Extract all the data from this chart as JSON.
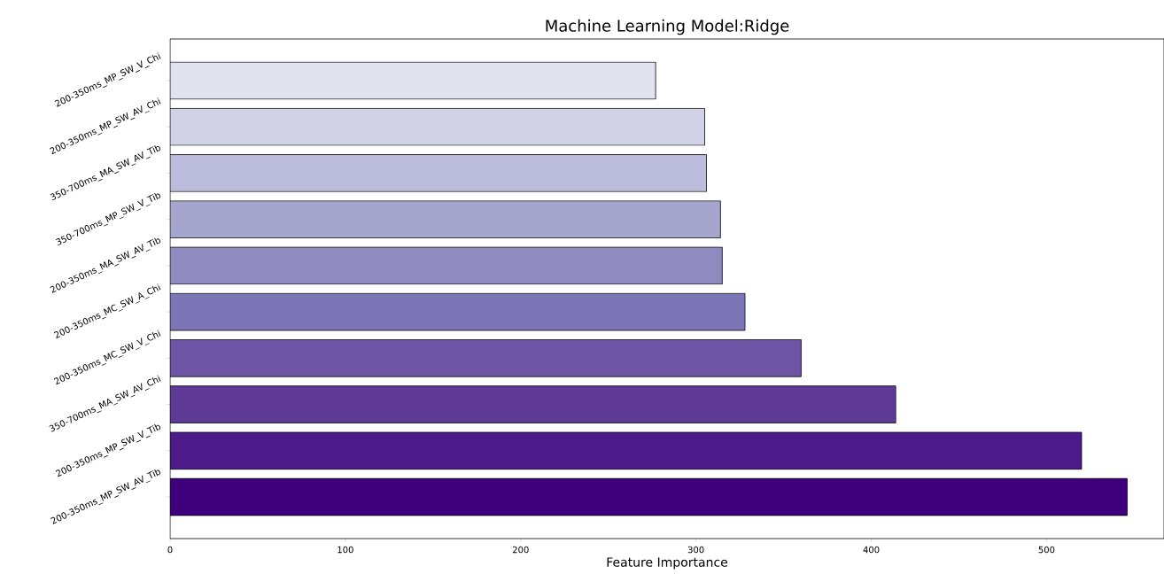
{
  "chart_data": {
    "type": "bar",
    "orientation": "horizontal",
    "title": "Machine Learning Model:Ridge",
    "xlabel": "Feature Importance",
    "categories": [
      "200-350ms_MP_SW_V_Chi",
      "200-350ms_MP_SW_AV_Chi",
      "350-700ms_MA_SW_AV_Tib",
      "350-700ms_MP_SW_V_Tib",
      "200-350ms_MA_SW_AV_Tib",
      "200-350ms_MC_SW_A_Chi",
      "200-350ms_MC_SW_V_Chi",
      "350-700ms_MA_SW_AV_Chi",
      "200-350ms_MP_SW_V_Tib",
      "200-350ms_MP_SW_AV_Tib"
    ],
    "values": [
      277,
      305,
      306,
      314,
      315,
      328,
      360,
      414,
      520,
      546
    ],
    "colors": [
      "#e3e2ef",
      "#d2d2e7",
      "#bcbddc",
      "#a6a5cd",
      "#8f8bc0",
      "#7c75b6",
      "#6f55a5",
      "#5e3a96",
      "#4d1a89",
      "#3f007d"
    ],
    "xlim": [
      0,
      567
    ],
    "xticks": [
      0,
      100,
      200,
      300,
      400,
      500
    ],
    "grid": false
  }
}
